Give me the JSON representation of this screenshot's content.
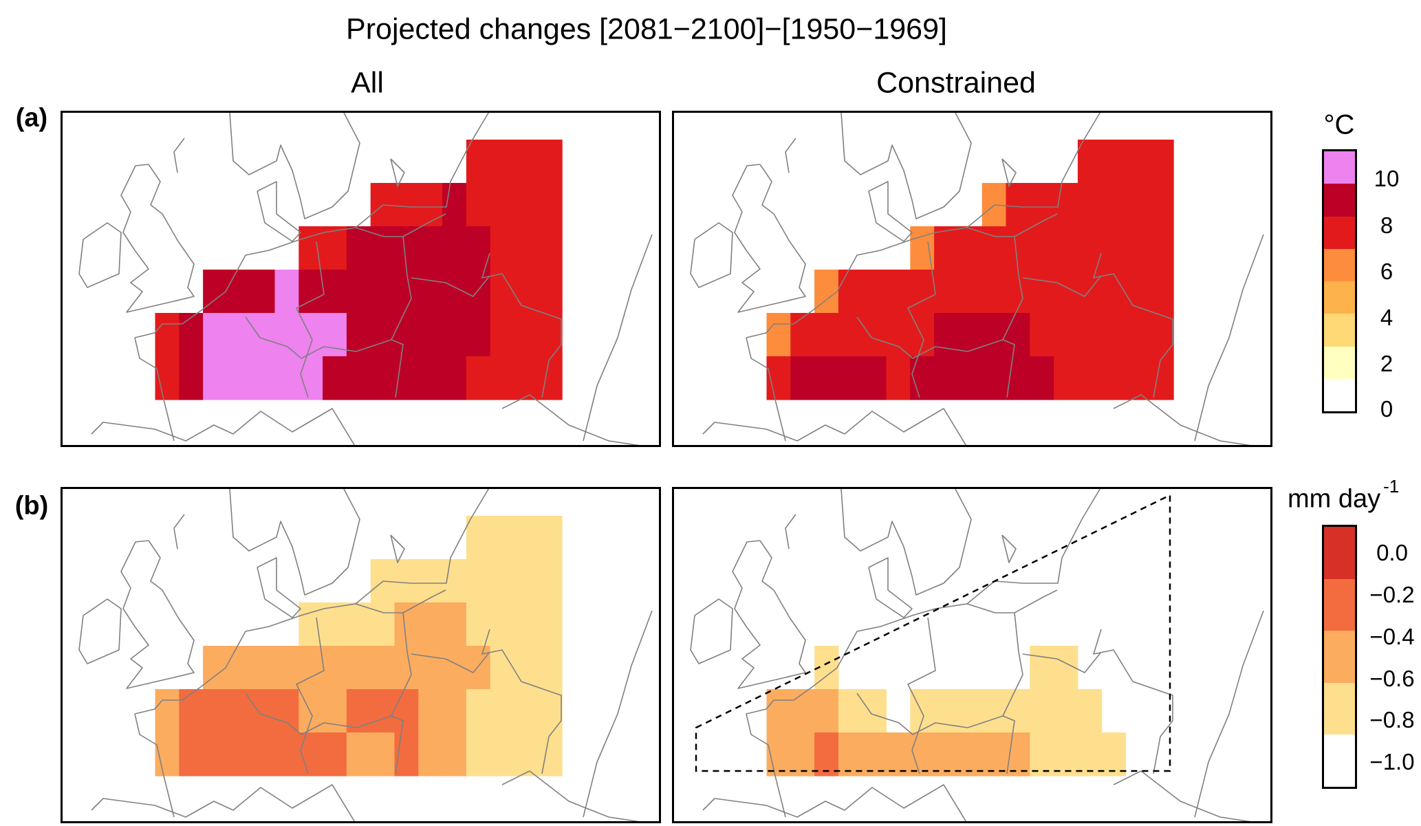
{
  "title": "Projected changes [2081−2100]−[1950−1969]",
  "column_titles": [
    "All",
    "Constrained"
  ],
  "row_labels": [
    "(a)",
    "(b)"
  ],
  "chart_data": [
    {
      "type": "heatmap",
      "panel": "(a) All",
      "unit": "°C",
      "grid_note_bins": "cell values are colorbar bin indices (0 = bottom/white bin)",
      "grid": [
        [
          0,
          0,
          0,
          0,
          0,
          0,
          0,
          0,
          0,
          0,
          0,
          0,
          0,
          5,
          5,
          5,
          5
        ],
        [
          0,
          0,
          0,
          0,
          0,
          0,
          0,
          0,
          0,
          5,
          5,
          5,
          6,
          5,
          5,
          5,
          5
        ],
        [
          0,
          0,
          0,
          0,
          0,
          0,
          5,
          5,
          6,
          6,
          6,
          6,
          6,
          6,
          5,
          5,
          5
        ],
        [
          0,
          0,
          6,
          6,
          6,
          7,
          6,
          6,
          6,
          6,
          6,
          6,
          6,
          6,
          5,
          5,
          5
        ],
        [
          5,
          6,
          7,
          7,
          7,
          7,
          7,
          7,
          6,
          6,
          6,
          6,
          6,
          6,
          5,
          5,
          5
        ],
        [
          5,
          6,
          7,
          7,
          7,
          7,
          7,
          6,
          6,
          6,
          6,
          6,
          6,
          5,
          5,
          5,
          5
        ]
      ]
    },
    {
      "type": "heatmap",
      "panel": "(a) Constrained",
      "unit": "°C",
      "grid": [
        [
          0,
          0,
          0,
          0,
          0,
          0,
          0,
          0,
          0,
          0,
          0,
          0,
          0,
          5,
          5,
          5,
          5
        ],
        [
          0,
          0,
          0,
          0,
          0,
          0,
          0,
          0,
          0,
          4,
          5,
          5,
          5,
          5,
          5,
          5,
          5
        ],
        [
          0,
          0,
          0,
          0,
          0,
          0,
          4,
          5,
          5,
          5,
          5,
          5,
          5,
          5,
          5,
          5,
          5
        ],
        [
          0,
          0,
          4,
          5,
          5,
          5,
          5,
          5,
          5,
          5,
          5,
          5,
          5,
          5,
          5,
          5,
          5
        ],
        [
          4,
          5,
          5,
          5,
          5,
          5,
          5,
          6,
          6,
          6,
          6,
          5,
          5,
          5,
          5,
          5,
          5
        ],
        [
          5,
          6,
          6,
          6,
          6,
          5,
          6,
          6,
          6,
          6,
          6,
          6,
          5,
          5,
          5,
          5,
          5
        ]
      ]
    },
    {
      "type": "heatmap",
      "panel": "(b) All",
      "unit": "mm day-1",
      "grid": [
        [
          0,
          0,
          0,
          0,
          0,
          0,
          0,
          0,
          0,
          0,
          0,
          0,
          0,
          1,
          1,
          1,
          1
        ],
        [
          0,
          0,
          0,
          0,
          0,
          0,
          0,
          0,
          0,
          1,
          1,
          1,
          1,
          1,
          1,
          1,
          1
        ],
        [
          0,
          0,
          0,
          0,
          0,
          0,
          1,
          1,
          1,
          1,
          2,
          2,
          2,
          1,
          1,
          1,
          1
        ],
        [
          0,
          0,
          2,
          2,
          2,
          2,
          2,
          2,
          2,
          2,
          2,
          2,
          2,
          2,
          1,
          1,
          1
        ],
        [
          2,
          3,
          3,
          3,
          3,
          3,
          2,
          2,
          3,
          3,
          3,
          2,
          2,
          1,
          1,
          1,
          1
        ],
        [
          2,
          3,
          3,
          3,
          3,
          3,
          3,
          3,
          2,
          2,
          3,
          2,
          2,
          1,
          1,
          1,
          1
        ]
      ]
    },
    {
      "type": "heatmap",
      "panel": "(b) Constrained",
      "unit": "mm day-1",
      "dashed_region": true,
      "grid": [
        [
          0,
          0,
          0,
          0,
          0,
          0,
          0,
          0,
          0,
          0,
          0,
          0,
          0,
          0,
          0,
          0,
          0
        ],
        [
          0,
          0,
          0,
          0,
          0,
          0,
          0,
          0,
          0,
          0,
          0,
          0,
          0,
          0,
          0,
          0,
          0
        ],
        [
          0,
          0,
          0,
          0,
          0,
          0,
          0,
          0,
          0,
          0,
          0,
          0,
          0,
          0,
          0,
          0,
          0
        ],
        [
          0,
          0,
          1,
          0,
          0,
          0,
          0,
          0,
          0,
          0,
          0,
          1,
          1,
          0,
          0,
          0,
          0
        ],
        [
          2,
          2,
          2,
          1,
          1,
          0,
          1,
          1,
          1,
          1,
          1,
          1,
          1,
          1,
          0,
          0,
          0
        ],
        [
          2,
          2,
          3,
          2,
          2,
          2,
          2,
          2,
          2,
          2,
          2,
          1,
          1,
          1,
          1,
          0,
          0
        ]
      ]
    }
  ],
  "legend_a": {
    "unit": "°C",
    "ticks": [
      "10",
      "8",
      "6",
      "4",
      "2",
      "0"
    ],
    "colors": [
      "#ffffff",
      "#ffffc0",
      "#fed976",
      "#feb24c",
      "#fd8d3c",
      "#e31a1c",
      "#bd0026",
      "#ee82ee"
    ]
  },
  "legend_b": {
    "unit": "mm day",
    "unit_sup": "-1",
    "ticks": [
      "0.0",
      "−0.2",
      "−0.4",
      "−0.6",
      "−0.8",
      "−1.0"
    ],
    "colors": [
      "#ffffff",
      "#fddf8e",
      "#fbac5f",
      "#f26c40",
      "#d73027"
    ]
  },
  "colors": {
    "coastline": "#808080",
    "frame": "#000000"
  }
}
